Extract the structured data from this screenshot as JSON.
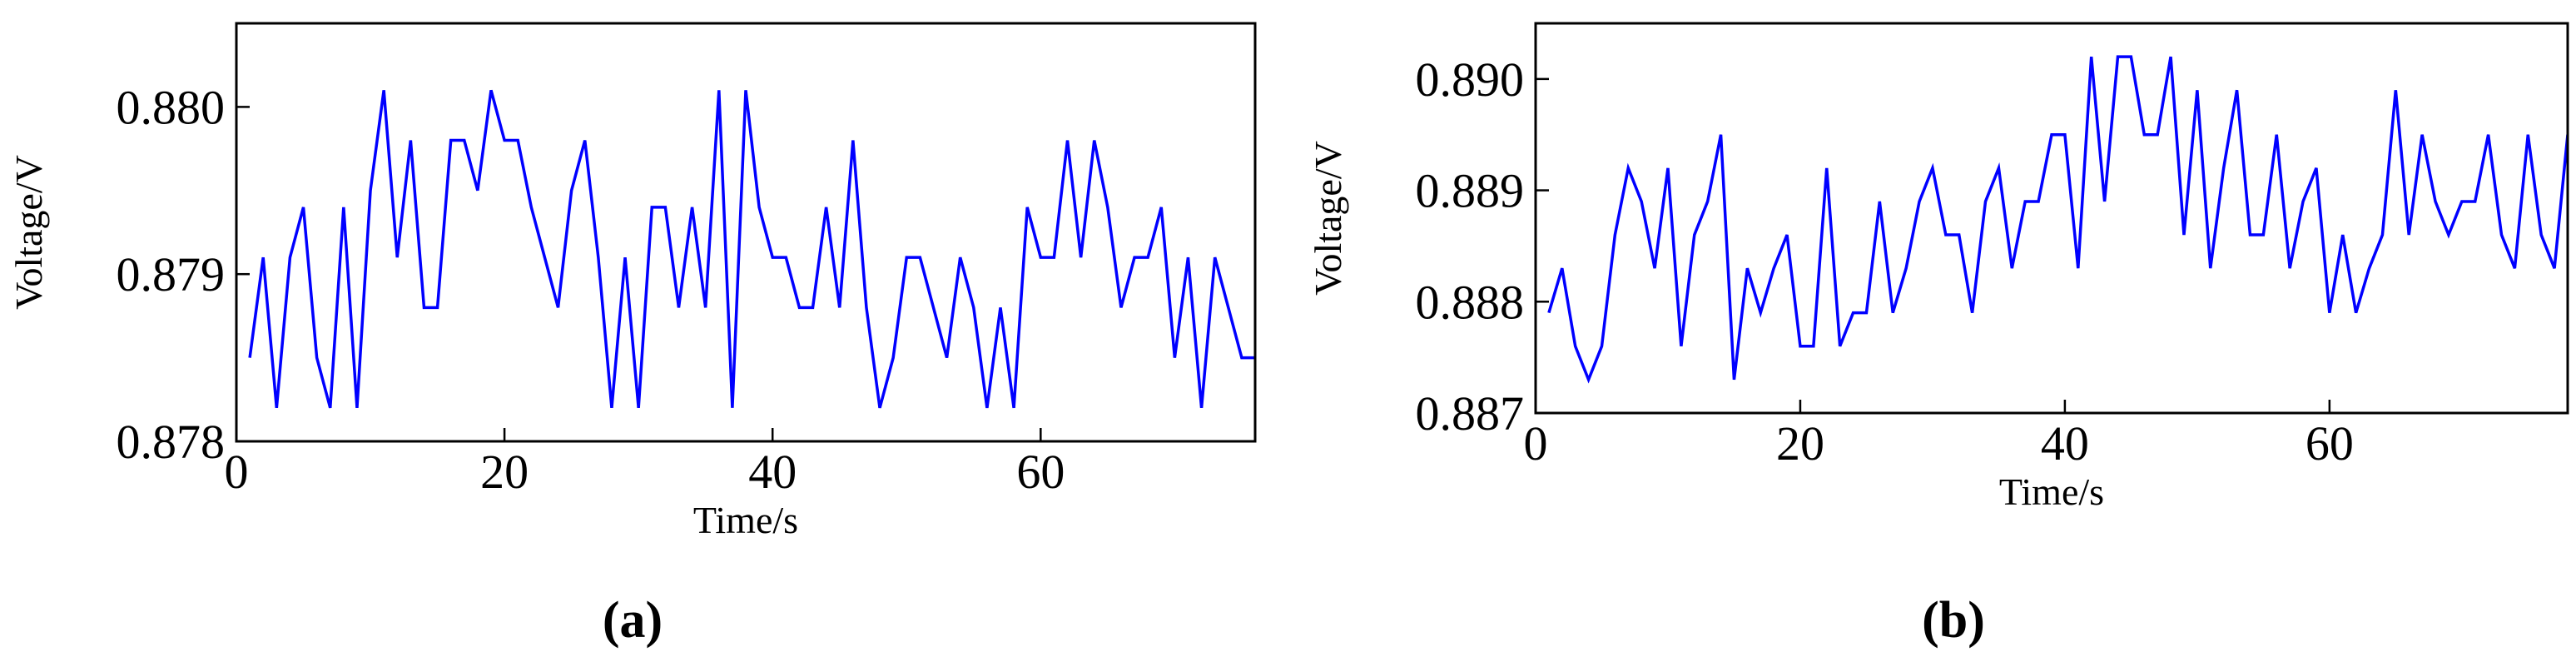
{
  "chart_data": [
    {
      "type": "line",
      "caption": "(a)",
      "x_label": "Time/s",
      "y_label": "Voltage/V",
      "color": "#0000ff",
      "xlim": [
        0,
        76
      ],
      "xticks": [
        0,
        20,
        40,
        60
      ],
      "ylim": [
        0.878,
        0.8805
      ],
      "yticks": [
        0.878,
        0.879,
        {
          "value": 0.88,
          "label": "0.880"
        }
      ],
      "x": [
        1,
        2,
        3,
        4,
        5,
        6,
        7,
        8,
        9,
        10,
        11,
        12,
        13,
        14,
        15,
        16,
        17,
        18,
        19,
        20,
        21,
        22,
        23,
        24,
        25,
        26,
        27,
        28,
        29,
        30,
        31,
        32,
        33,
        34,
        35,
        36,
        37,
        38,
        39,
        40,
        41,
        42,
        43,
        44,
        45,
        46,
        47,
        48,
        49,
        50,
        51,
        52,
        53,
        54,
        55,
        56,
        57,
        58,
        59,
        60,
        61,
        62,
        63,
        64,
        65,
        66,
        67,
        68,
        69,
        70,
        71,
        72,
        73,
        74,
        75,
        76
      ],
      "values": [
        0.8785,
        0.8791,
        0.8782,
        0.8791,
        0.8794,
        0.8785,
        0.8782,
        0.8794,
        0.8782,
        0.8795,
        0.8801,
        0.8791,
        0.8798,
        0.8788,
        0.8788,
        0.8798,
        0.8798,
        0.8795,
        0.8801,
        0.8798,
        0.8798,
        0.8794,
        0.8791,
        0.8788,
        0.8795,
        0.8798,
        0.8791,
        0.8782,
        0.8791,
        0.8782,
        0.8794,
        0.8794,
        0.8788,
        0.8794,
        0.8788,
        0.8801,
        0.8782,
        0.8801,
        0.8794,
        0.8791,
        0.8791,
        0.8788,
        0.8788,
        0.8794,
        0.8788,
        0.8798,
        0.8788,
        0.8782,
        0.8785,
        0.8791,
        0.8791,
        0.8788,
        0.8785,
        0.8791,
        0.8788,
        0.8782,
        0.8788,
        0.8782,
        0.8794,
        0.8791,
        0.8791,
        0.8798,
        0.8791,
        0.8798,
        0.8794,
        0.8788,
        0.8791,
        0.8791,
        0.8794,
        0.8785,
        0.8791,
        0.8782,
        0.8791,
        0.8788,
        0.8785,
        0.8785
      ]
    },
    {
      "type": "line",
      "caption": "(b)",
      "x_label": "Time/s",
      "y_label": "Voltage/V",
      "color": "#0000ff",
      "xlim": [
        0,
        78
      ],
      "xticks": [
        0,
        20,
        40,
        60
      ],
      "ylim": [
        0.887,
        0.8905
      ],
      "yticks": [
        0.887,
        0.888,
        0.889,
        {
          "value": 0.89,
          "label": "0.890"
        }
      ],
      "x": [
        1,
        2,
        3,
        4,
        5,
        6,
        7,
        8,
        9,
        10,
        11,
        12,
        13,
        14,
        15,
        16,
        17,
        18,
        19,
        20,
        21,
        22,
        23,
        24,
        25,
        26,
        27,
        28,
        29,
        30,
        31,
        32,
        33,
        34,
        35,
        36,
        37,
        38,
        39,
        40,
        41,
        42,
        43,
        44,
        45,
        46,
        47,
        48,
        49,
        50,
        51,
        52,
        53,
        54,
        55,
        56,
        57,
        58,
        59,
        60,
        61,
        62,
        63,
        64,
        65,
        66,
        67,
        68,
        69,
        70,
        71,
        72,
        73,
        74,
        75,
        76,
        77,
        78
      ],
      "values": [
        0.8879,
        0.8883,
        0.8876,
        0.8873,
        0.8876,
        0.8886,
        0.8892,
        0.8889,
        0.8883,
        0.8892,
        0.8876,
        0.8886,
        0.8889,
        0.8895,
        0.8873,
        0.8883,
        0.8879,
        0.8883,
        0.8886,
        0.8876,
        0.8876,
        0.8892,
        0.8876,
        0.8879,
        0.8879,
        0.8889,
        0.8879,
        0.8883,
        0.8889,
        0.8892,
        0.8886,
        0.8886,
        0.8879,
        0.8889,
        0.8892,
        0.8883,
        0.8889,
        0.8889,
        0.8895,
        0.8895,
        0.8883,
        0.8902,
        0.8889,
        0.8902,
        0.8902,
        0.8895,
        0.8895,
        0.8902,
        0.8886,
        0.8899,
        0.8883,
        0.8892,
        0.8899,
        0.8886,
        0.8886,
        0.8895,
        0.8883,
        0.8889,
        0.8892,
        0.8879,
        0.8886,
        0.8879,
        0.8883,
        0.8886,
        0.8899,
        0.8886,
        0.8895,
        0.8889,
        0.8886,
        0.8889,
        0.8889,
        0.8895,
        0.8886,
        0.8883,
        0.8895,
        0.8886,
        0.8883,
        0.8895
      ]
    }
  ]
}
